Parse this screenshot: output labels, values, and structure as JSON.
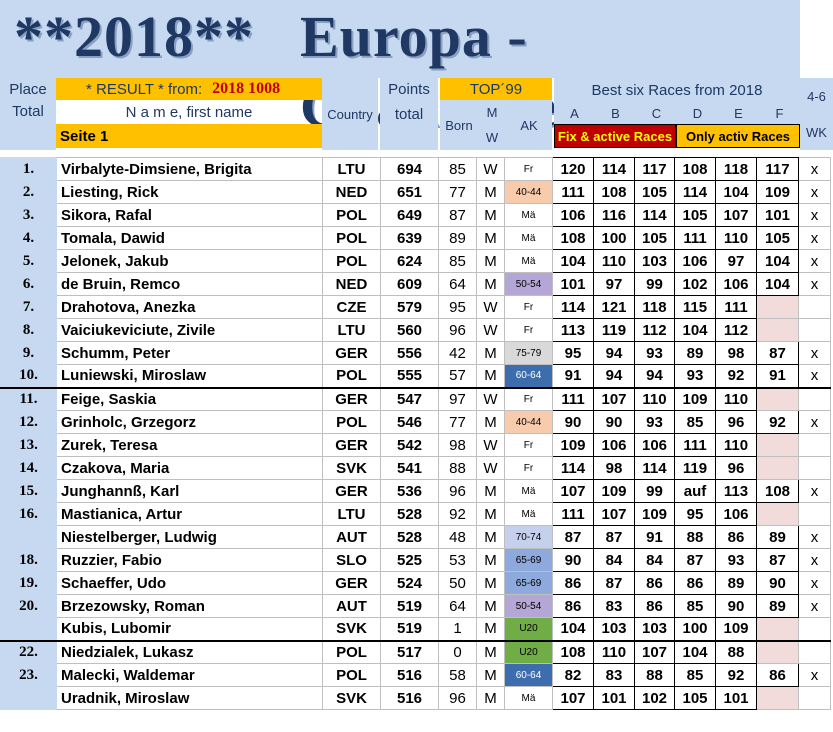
{
  "title": {
    "left": "**2018**",
    "right": "Europa  -  Challenge"
  },
  "header": {
    "place": "Place",
    "total": "Total",
    "result": "* RESULT *  from:",
    "result_date": "2018  1008",
    "name_header": "N a m e, first name",
    "page": "Seite 1",
    "country": "Country",
    "points": "Points",
    "points_total": "total",
    "top": "TOP´99",
    "born": "Born",
    "m": "M",
    "w": "W",
    "ak": "AK",
    "best_six": "Best six Races from 2018",
    "races": [
      "A",
      "B",
      "C",
      "D",
      "E",
      "F"
    ],
    "wk_top": "4-6",
    "wk": "WK",
    "fix_label": "Fix & active Races",
    "only_label": "Only activ Races"
  },
  "rows": [
    {
      "place": "1.",
      "name": "Virbalyte-Dimsiene, Brigita",
      "country": "LTU",
      "points": "694",
      "born": "85",
      "mw": "W",
      "ak": "Fr",
      "ak_color": "#ffffff",
      "r": [
        "120",
        "114",
        "117",
        "108",
        "118",
        "117"
      ],
      "wk": "x"
    },
    {
      "place": "2.",
      "name": "Liesting, Rick",
      "country": "NED",
      "points": "651",
      "born": "77",
      "mw": "M",
      "ak": "40-44",
      "ak_color": "#f8cbad",
      "r": [
        "111",
        "108",
        "105",
        "114",
        "104",
        "109"
      ],
      "wk": "x"
    },
    {
      "place": "3.",
      "name": "Sikora, Rafal",
      "country": "POL",
      "points": "649",
      "born": "87",
      "mw": "M",
      "ak": "Mä",
      "ak_color": "#ffffff",
      "r": [
        "106",
        "116",
        "114",
        "105",
        "107",
        "101"
      ],
      "wk": "x"
    },
    {
      "place": "4.",
      "name": "Tomala, Dawid",
      "country": "POL",
      "points": "639",
      "born": "89",
      "mw": "M",
      "ak": "Mä",
      "ak_color": "#ffffff",
      "r": [
        "108",
        "100",
        "105",
        "111",
        "110",
        "105"
      ],
      "wk": "x"
    },
    {
      "place": "5.",
      "name": "Jelonek, Jakub",
      "country": "POL",
      "points": "624",
      "born": "85",
      "mw": "M",
      "ak": "Mä",
      "ak_color": "#ffffff",
      "r": [
        "104",
        "110",
        "103",
        "106",
        "97",
        "104"
      ],
      "wk": "x"
    },
    {
      "place": "6.",
      "name": "de Bruin, Remco",
      "country": "NED",
      "points": "609",
      "born": "64",
      "mw": "M",
      "ak": "50-54",
      "ak_color": "#b4a7d6",
      "r": [
        "101",
        "97",
        "99",
        "102",
        "106",
        "104"
      ],
      "wk": "x"
    },
    {
      "place": "7.",
      "name": "Drahotova, Anezka",
      "country": "CZE",
      "points": "579",
      "born": "95",
      "mw": "W",
      "ak": "Fr",
      "ak_color": "#ffffff",
      "r": [
        "114",
        "121",
        "118",
        "115",
        "111",
        ""
      ],
      "wk": ""
    },
    {
      "place": "8.",
      "name": "Vaiciukeviciute, Zivile",
      "country": "LTU",
      "points": "560",
      "born": "96",
      "mw": "W",
      "ak": "Fr",
      "ak_color": "#ffffff",
      "r": [
        "113",
        "119",
        "112",
        "104",
        "112",
        ""
      ],
      "wk": ""
    },
    {
      "place": "9.",
      "name": "Schumm, Peter",
      "country": "GER",
      "points": "556",
      "born": "42",
      "mw": "M",
      "ak": "75-79",
      "ak_color": "#d9d9d9",
      "r": [
        "95",
        "94",
        "93",
        "89",
        "98",
        "87"
      ],
      "wk": "x"
    },
    {
      "place": "10.",
      "name": "Luniewski, Miroslaw",
      "country": "POL",
      "points": "555",
      "born": "57",
      "mw": "M",
      "ak": "60-64",
      "ak_color": "#3d6dad",
      "r": [
        "91",
        "94",
        "94",
        "93",
        "92",
        "91"
      ],
      "wk": "x"
    },
    {
      "place": "11.",
      "name": "Feige, Saskia",
      "country": "GER",
      "points": "547",
      "born": "97",
      "mw": "W",
      "ak": "Fr",
      "ak_color": "#ffffff",
      "r": [
        "111",
        "107",
        "110",
        "109",
        "110",
        ""
      ],
      "wk": ""
    },
    {
      "place": "12.",
      "name": "Grinholc, Grzegorz",
      "country": "POL",
      "points": "546",
      "born": "77",
      "mw": "M",
      "ak": "40-44",
      "ak_color": "#f8cbad",
      "r": [
        "90",
        "90",
        "93",
        "85",
        "96",
        "92"
      ],
      "wk": "x"
    },
    {
      "place": "13.",
      "name": "Zurek, Teresa",
      "country": "GER",
      "points": "542",
      "born": "98",
      "mw": "W",
      "ak": "Fr",
      "ak_color": "#ffffff",
      "r": [
        "109",
        "106",
        "106",
        "111",
        "110",
        ""
      ],
      "wk": ""
    },
    {
      "place": "14.",
      "name": "Czakova, Maria",
      "country": "SVK",
      "points": "541",
      "born": "88",
      "mw": "W",
      "ak": "Fr",
      "ak_color": "#ffffff",
      "r": [
        "114",
        "98",
        "114",
        "119",
        "96",
        ""
      ],
      "wk": ""
    },
    {
      "place": "15.",
      "name": "Junghannß, Karl",
      "country": "GER",
      "points": "536",
      "born": "96",
      "mw": "M",
      "ak": "Mä",
      "ak_color": "#ffffff",
      "r": [
        "107",
        "109",
        "99",
        "auf",
        "113",
        "108"
      ],
      "wk": "x"
    },
    {
      "place": "16.",
      "name": "Mastianica, Artur",
      "country": "LTU",
      "points": "528",
      "born": "92",
      "mw": "M",
      "ak": "Mä",
      "ak_color": "#ffffff",
      "r": [
        "111",
        "107",
        "109",
        "95",
        "106",
        ""
      ],
      "wk": ""
    },
    {
      "place": "",
      "name": "Niestelberger, Ludwig",
      "country": "AUT",
      "points": "528",
      "born": "48",
      "mw": "M",
      "ak": "70-74",
      "ak_color": "#c5d0ec",
      "r": [
        "87",
        "87",
        "91",
        "88",
        "86",
        "89"
      ],
      "wk": "x"
    },
    {
      "place": "18.",
      "name": "Ruzzier, Fabio",
      "country": "SLO",
      "points": "525",
      "born": "53",
      "mw": "M",
      "ak": "65-69",
      "ak_color": "#8ea9db",
      "r": [
        "90",
        "84",
        "84",
        "87",
        "93",
        "87"
      ],
      "wk": "x"
    },
    {
      "place": "19.",
      "name": "Schaeffer, Udo",
      "country": "GER",
      "points": "524",
      "born": "50",
      "mw": "M",
      "ak": "65-69",
      "ak_color": "#8ea9db",
      "r": [
        "86",
        "87",
        "86",
        "86",
        "89",
        "90"
      ],
      "wk": "x"
    },
    {
      "place": "20.",
      "name": "Brzezowsky, Roman",
      "country": "AUT",
      "points": "519",
      "born": "64",
      "mw": "M",
      "ak": "50-54",
      "ak_color": "#b4a7d6",
      "r": [
        "86",
        "83",
        "86",
        "85",
        "90",
        "89"
      ],
      "wk": "x"
    },
    {
      "place": "",
      "name": "Kubis, Lubomir",
      "country": "SVK",
      "points": "519",
      "born": "1",
      "mw": "M",
      "ak": "U20",
      "ak_color": "#70ad47",
      "r": [
        "104",
        "103",
        "103",
        "100",
        "109",
        ""
      ],
      "wk": ""
    },
    {
      "place": "22.",
      "name": "Niedzialek, Lukasz",
      "country": "POL",
      "points": "517",
      "born": "0",
      "mw": "M",
      "ak": "U20",
      "ak_color": "#70ad47",
      "r": [
        "108",
        "110",
        "107",
        "104",
        "88",
        ""
      ],
      "wk": ""
    },
    {
      "place": "23.",
      "name": "Malecki, Waldemar",
      "country": "POL",
      "points": "516",
      "born": "58",
      "mw": "M",
      "ak": "60-64",
      "ak_color": "#3d6dad",
      "r": [
        "82",
        "83",
        "88",
        "85",
        "92",
        "86"
      ],
      "wk": "x"
    },
    {
      "place": "",
      "name": "Uradnik, Miroslaw",
      "country": "SVK",
      "points": "516",
      "born": "96",
      "mw": "M",
      "ak": "Mä",
      "ak_color": "#ffffff",
      "r": [
        "107",
        "101",
        "102",
        "105",
        "101",
        ""
      ],
      "wk": ""
    }
  ]
}
